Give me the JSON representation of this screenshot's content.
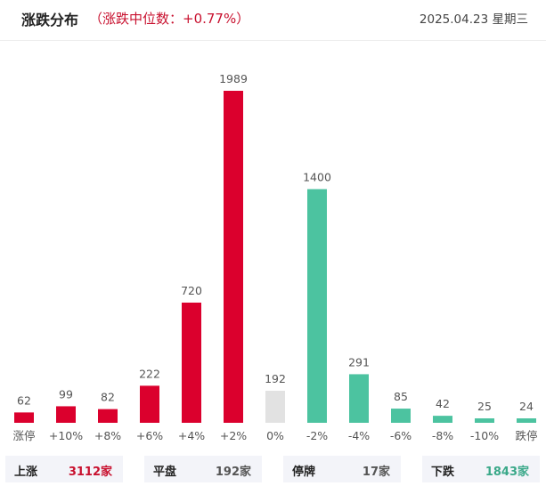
{
  "header": {
    "title": "涨跌分布",
    "subtitle": "（涨跌中位数：+0.77%）",
    "date": "2025.04.23 星期三"
  },
  "colors": {
    "up": "#db002d",
    "flat": "#e2e2e2",
    "down": "#4cc3a0",
    "up_text": "#c8102e",
    "neutral_text": "#555555",
    "down_text": "#3aa889"
  },
  "chart_data": {
    "type": "bar",
    "categories": [
      "涨停",
      "+10%",
      "+8%",
      "+6%",
      "+4%",
      "+2%",
      "0%",
      "-2%",
      "-4%",
      "-6%",
      "-8%",
      "-10%",
      "跌停"
    ],
    "values": [
      62,
      99,
      82,
      222,
      720,
      1989,
      192,
      1400,
      291,
      85,
      42,
      25,
      24
    ],
    "value_labels": [
      "62",
      "99",
      "82",
      "222",
      "720",
      "1989",
      "192",
      "1400",
      "291",
      "85",
      "42",
      "25",
      "24"
    ],
    "bar_colors": [
      "up",
      "up",
      "up",
      "up",
      "up",
      "up",
      "flat",
      "down",
      "down",
      "down",
      "down",
      "down",
      "down"
    ],
    "ylim": [
      0,
      1989
    ],
    "grid": false,
    "legend": "none"
  },
  "summary": [
    {
      "label": "上涨",
      "value": "3112家",
      "color": "up_text"
    },
    {
      "label": "平盘",
      "value": "192家",
      "color": "neutral_text"
    },
    {
      "label": "停牌",
      "value": "17家",
      "color": "neutral_text"
    },
    {
      "label": "下跌",
      "value": "1843家",
      "color": "down_text"
    }
  ]
}
